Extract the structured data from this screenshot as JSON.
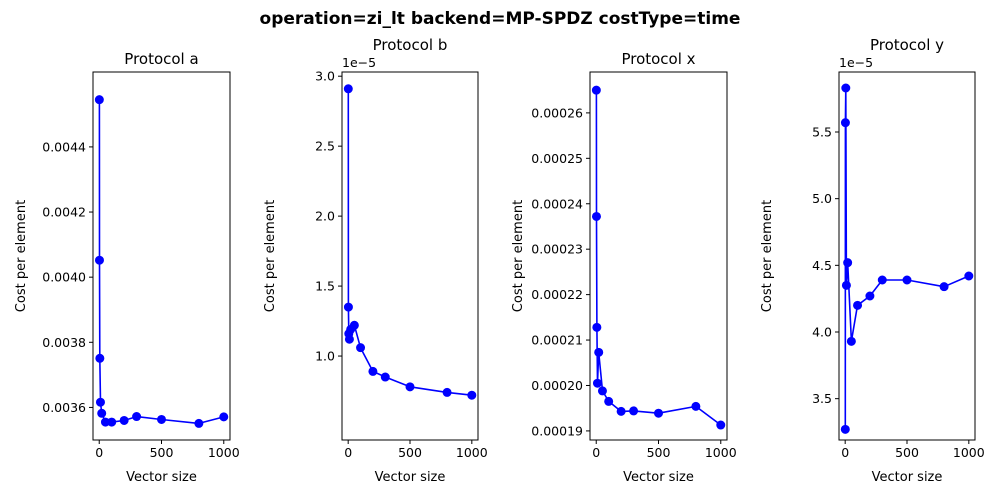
{
  "figure": {
    "suptitle": "operation=zi_lt backend=MP-SPDZ costType=time",
    "line_color": "#0000ff"
  },
  "chart_data": [
    {
      "type": "line",
      "title": "Protocol a",
      "xlabel": "Vector size",
      "ylabel": "Cost per element",
      "offset_text": "",
      "xlim": [
        -50,
        1050
      ],
      "ylim": [
        0.0035,
        0.00463
      ],
      "xticks": [
        0,
        500,
        1000
      ],
      "xtick_labels": [
        "0",
        "500",
        "1000"
      ],
      "yticks": [
        0.0036,
        0.0038,
        0.004,
        0.0042,
        0.0044
      ],
      "ytick_labels": [
        "0.0036",
        "0.0038",
        "0.0040",
        "0.0042",
        "0.0044"
      ],
      "series": [
        {
          "x": [
            1,
            2,
            5,
            10,
            20,
            50,
            100,
            200,
            300,
            500,
            800,
            1000
          ],
          "y": [
            0.004545,
            0.004052,
            0.003751,
            0.003616,
            0.003582,
            0.003555,
            0.003555,
            0.00356,
            0.003572,
            0.003563,
            0.003551,
            0.003571
          ]
        }
      ],
      "grid": false,
      "legend": "none"
    },
    {
      "type": "line",
      "title": "Protocol b",
      "xlabel": "Vector size",
      "ylabel": "Cost per element",
      "offset_text": "1e−5",
      "xlim": [
        -50,
        1050
      ],
      "ylim": [
        0.4,
        3.03
      ],
      "xticks": [
        0,
        500,
        1000
      ],
      "xtick_labels": [
        "0",
        "500",
        "1000"
      ],
      "yticks": [
        1.0,
        1.5,
        2.0,
        2.5,
        3.0
      ],
      "ytick_labels": [
        "1.0",
        "1.5",
        "2.0",
        "2.5",
        "3.0"
      ],
      "series": [
        {
          "x": [
            1,
            2,
            5,
            10,
            20,
            50,
            100,
            200,
            300,
            500,
            800,
            1000
          ],
          "y": [
            2.91,
            1.35,
            1.16,
            1.12,
            1.19,
            1.22,
            1.06,
            0.89,
            0.85,
            0.78,
            0.74,
            0.72
          ]
        }
      ],
      "grid": false,
      "legend": "none"
    },
    {
      "type": "line",
      "title": "Protocol x",
      "xlabel": "Vector size",
      "ylabel": "Cost per element",
      "offset_text": "",
      "xlim": [
        -50,
        1050
      ],
      "ylim": [
        0.000188,
        0.000269
      ],
      "xticks": [
        0,
        500,
        1000
      ],
      "xtick_labels": [
        "0",
        "500",
        "1000"
      ],
      "yticks": [
        0.00019,
        0.0002,
        0.00021,
        0.00022,
        0.00023,
        0.00024,
        0.00025,
        0.00026
      ],
      "ytick_labels": [
        "0.00019",
        "0.00020",
        "0.00021",
        "0.00022",
        "0.00023",
        "0.00024",
        "0.00025",
        "0.00026"
      ],
      "series": [
        {
          "x": [
            1,
            2,
            5,
            10,
            20,
            50,
            100,
            200,
            300,
            500,
            800,
            1000
          ],
          "y": [
            0.000265,
            0.0002372,
            0.0002128,
            0.0002005,
            0.0002073,
            0.0001988,
            0.0001965,
            0.0001943,
            0.0001944,
            0.0001939,
            0.0001954,
            0.0001913
          ]
        }
      ],
      "grid": false,
      "legend": "none"
    },
    {
      "type": "line",
      "title": "Protocol y",
      "xlabel": "Vector size",
      "ylabel": "Cost per element",
      "offset_text": "1e−5",
      "xlim": [
        -50,
        1050
      ],
      "ylim": [
        3.19,
        5.95
      ],
      "xticks": [
        0,
        500,
        1000
      ],
      "xtick_labels": [
        "0",
        "500",
        "1000"
      ],
      "yticks": [
        3.5,
        4.0,
        4.5,
        5.0,
        5.5
      ],
      "ytick_labels": [
        "3.5",
        "4.0",
        "4.5",
        "5.0",
        "5.5"
      ],
      "series": [
        {
          "x": [
            1,
            2,
            5,
            10,
            20,
            50,
            100,
            200,
            300,
            500,
            800,
            1000
          ],
          "y": [
            3.27,
            5.57,
            5.83,
            4.35,
            4.52,
            3.93,
            4.2,
            4.27,
            4.39,
            4.39,
            4.34,
            4.42
          ]
        }
      ],
      "grid": false,
      "legend": "none"
    }
  ]
}
